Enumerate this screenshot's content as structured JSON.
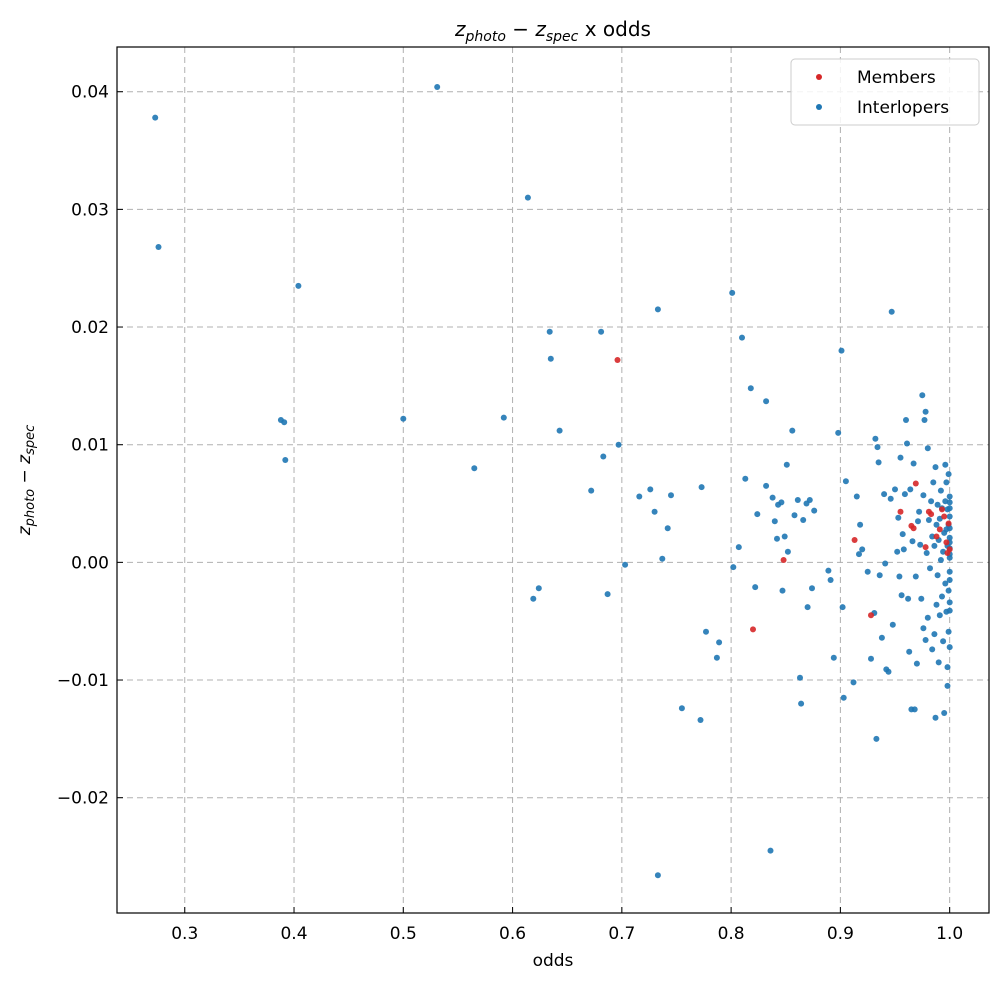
{
  "chart_data": {
    "type": "scatter",
    "title_main_1": "z",
    "title_sub_1": "photo",
    "title_minus": " − ",
    "title_main_2": "z",
    "title_sub_2": "spec",
    "title_suffix": " x odds",
    "xlabel": "odds",
    "ylabel_main_1": "z",
    "ylabel_sub_1": "photo",
    "ylabel_minus": " − ",
    "ylabel_main_2": "z",
    "ylabel_sub_2": "spec",
    "xlim": [
      0.238,
      1.036
    ],
    "ylim": [
      -0.0298,
      0.0438
    ],
    "x_ticks": [
      0.3,
      0.4,
      0.5,
      0.6,
      0.7,
      0.8,
      0.9,
      1.0
    ],
    "x_tick_labels": [
      "0.3",
      "0.4",
      "0.5",
      "0.6",
      "0.7",
      "0.8",
      "0.9",
      "1.0"
    ],
    "y_ticks": [
      -0.02,
      -0.01,
      0.0,
      0.01,
      0.02,
      0.03,
      0.04
    ],
    "y_tick_labels": [
      "−0.02",
      "−0.01",
      "0.00",
      "0.01",
      "0.02",
      "0.03",
      "0.04"
    ],
    "grid": true,
    "legend_position": "top-right",
    "series": [
      {
        "name": "Members",
        "color": "#d62728",
        "points": [
          [
            0.696,
            0.0172
          ],
          [
            0.82,
            -0.0057
          ],
          [
            0.848,
            0.0002
          ],
          [
            0.913,
            0.0019
          ],
          [
            0.928,
            -0.0045
          ],
          [
            0.955,
            0.0043
          ],
          [
            0.965,
            0.0031
          ],
          [
            0.967,
            0.0029
          ],
          [
            0.969,
            0.0067
          ],
          [
            0.978,
            0.0013
          ],
          [
            0.981,
            0.0043
          ],
          [
            0.983,
            0.0041
          ],
          [
            0.988,
            0.0022
          ],
          [
            0.991,
            0.0028
          ],
          [
            0.993,
            0.0045
          ],
          [
            0.995,
            0.0039
          ],
          [
            0.997,
            0.0017
          ],
          [
            0.998,
            0.0008
          ],
          [
            0.999,
            0.0033
          ],
          [
            1.0,
            0.0011
          ]
        ]
      },
      {
        "name": "Interlopers",
        "color": "#1f77b4",
        "points": [
          [
            0.273,
            0.0378
          ],
          [
            0.276,
            0.0268
          ],
          [
            0.388,
            0.0121
          ],
          [
            0.391,
            0.0119
          ],
          [
            0.392,
            0.0087
          ],
          [
            0.404,
            0.0235
          ],
          [
            0.5,
            0.0122
          ],
          [
            0.531,
            0.0404
          ],
          [
            0.565,
            0.008
          ],
          [
            0.592,
            0.0123
          ],
          [
            0.614,
            0.031
          ],
          [
            0.619,
            -0.0031
          ],
          [
            0.624,
            -0.0022
          ],
          [
            0.634,
            0.0196
          ],
          [
            0.635,
            0.0173
          ],
          [
            0.643,
            0.0112
          ],
          [
            0.672,
            0.0061
          ],
          [
            0.681,
            0.0196
          ],
          [
            0.683,
            0.009
          ],
          [
            0.687,
            -0.0027
          ],
          [
            0.697,
            0.01
          ],
          [
            0.703,
            -0.0002
          ],
          [
            0.716,
            0.0056
          ],
          [
            0.726,
            0.0062
          ],
          [
            0.73,
            0.0043
          ],
          [
            0.733,
            0.0215
          ],
          [
            0.733,
            -0.0266
          ],
          [
            0.737,
            0.0003
          ],
          [
            0.742,
            0.0029
          ],
          [
            0.745,
            0.0057
          ],
          [
            0.755,
            -0.0124
          ],
          [
            0.772,
            -0.0134
          ],
          [
            0.773,
            0.0064
          ],
          [
            0.777,
            -0.0059
          ],
          [
            0.787,
            -0.0081
          ],
          [
            0.789,
            -0.0068
          ],
          [
            0.801,
            0.0229
          ],
          [
            0.802,
            -0.0004
          ],
          [
            0.807,
            0.0013
          ],
          [
            0.81,
            0.0191
          ],
          [
            0.813,
            0.0071
          ],
          [
            0.818,
            0.0148
          ],
          [
            0.822,
            -0.0021
          ],
          [
            0.824,
            0.0041
          ],
          [
            0.832,
            0.0137
          ],
          [
            0.832,
            0.0065
          ],
          [
            0.836,
            -0.0245
          ],
          [
            0.838,
            0.0055
          ],
          [
            0.84,
            0.0035
          ],
          [
            0.842,
            0.002
          ],
          [
            0.843,
            0.0049
          ],
          [
            0.846,
            0.0051
          ],
          [
            0.847,
            -0.0024
          ],
          [
            0.849,
            0.0022
          ],
          [
            0.851,
            0.0083
          ],
          [
            0.852,
            0.0009
          ],
          [
            0.856,
            0.0112
          ],
          [
            0.858,
            0.004
          ],
          [
            0.861,
            0.0053
          ],
          [
            0.863,
            -0.0098
          ],
          [
            0.864,
            -0.012
          ],
          [
            0.866,
            0.0036
          ],
          [
            0.869,
            0.005
          ],
          [
            0.87,
            -0.0038
          ],
          [
            0.872,
            0.0053
          ],
          [
            0.874,
            -0.0022
          ],
          [
            0.876,
            0.0044
          ],
          [
            0.889,
            -0.0007
          ],
          [
            0.891,
            -0.0015
          ],
          [
            0.894,
            -0.0081
          ],
          [
            0.898,
            0.011
          ],
          [
            0.901,
            0.018
          ],
          [
            0.902,
            -0.0038
          ],
          [
            0.903,
            -0.0115
          ],
          [
            0.905,
            0.0069
          ],
          [
            0.912,
            -0.0102
          ],
          [
            0.915,
            0.0056
          ],
          [
            0.917,
            0.0007
          ],
          [
            0.918,
            0.0032
          ],
          [
            0.92,
            0.0011
          ],
          [
            0.925,
            -0.0008
          ],
          [
            0.928,
            -0.0082
          ],
          [
            0.931,
            -0.0043
          ],
          [
            0.932,
            0.0105
          ],
          [
            0.933,
            -0.015
          ],
          [
            0.934,
            0.0098
          ],
          [
            0.935,
            0.0085
          ],
          [
            0.936,
            -0.0011
          ],
          [
            0.938,
            -0.0064
          ],
          [
            0.94,
            0.0058
          ],
          [
            0.941,
            -0.0001
          ],
          [
            0.942,
            -0.0091
          ],
          [
            0.944,
            -0.0093
          ],
          [
            0.946,
            0.0054
          ],
          [
            0.947,
            0.0213
          ],
          [
            0.948,
            -0.0053
          ],
          [
            0.95,
            0.0062
          ],
          [
            0.952,
            0.0009
          ],
          [
            0.953,
            0.0038
          ],
          [
            0.954,
            -0.0012
          ],
          [
            0.955,
            0.0089
          ],
          [
            0.956,
            -0.0028
          ],
          [
            0.957,
            0.0024
          ],
          [
            0.958,
            0.0011
          ],
          [
            0.959,
            0.0058
          ],
          [
            0.96,
            0.0121
          ],
          [
            0.961,
            0.0101
          ],
          [
            0.962,
            -0.0031
          ],
          [
            0.963,
            -0.0076
          ],
          [
            0.964,
            0.0062
          ],
          [
            0.965,
            -0.0125
          ],
          [
            0.966,
            0.0018
          ],
          [
            0.967,
            0.0084
          ],
          [
            0.968,
            -0.0125
          ],
          [
            0.969,
            -0.0012
          ],
          [
            0.97,
            -0.0086
          ],
          [
            0.971,
            0.0035
          ],
          [
            0.972,
            0.0043
          ],
          [
            0.973,
            0.0015
          ],
          [
            0.974,
            -0.0031
          ],
          [
            0.975,
            0.0142
          ],
          [
            0.976,
            0.0057
          ],
          [
            0.976,
            -0.0056
          ],
          [
            0.977,
            0.0121
          ],
          [
            0.978,
            0.0128
          ],
          [
            0.978,
            -0.0066
          ],
          [
            0.979,
            0.0008
          ],
          [
            0.98,
            0.0097
          ],
          [
            0.98,
            -0.0047
          ],
          [
            0.981,
            0.0036
          ],
          [
            0.982,
            -0.0005
          ],
          [
            0.983,
            0.0052
          ],
          [
            0.984,
            -0.0074
          ],
          [
            0.984,
            0.0022
          ],
          [
            0.985,
            0.0068
          ],
          [
            0.986,
            -0.0061
          ],
          [
            0.986,
            0.0014
          ],
          [
            0.987,
            -0.0132
          ],
          [
            0.987,
            0.0081
          ],
          [
            0.988,
            0.0032
          ],
          [
            0.988,
            -0.0036
          ],
          [
            0.989,
            0.0049
          ],
          [
            0.989,
            -0.0011
          ],
          [
            0.99,
            0.0019
          ],
          [
            0.99,
            -0.0085
          ],
          [
            0.991,
            0.0037
          ],
          [
            0.991,
            -0.0045
          ],
          [
            0.992,
            0.0002
          ],
          [
            0.992,
            0.0061
          ],
          [
            0.993,
            -0.0029
          ],
          [
            0.993,
            0.0046
          ],
          [
            0.994,
            -0.0067
          ],
          [
            0.994,
            0.0009
          ],
          [
            0.995,
            0.0025
          ],
          [
            0.995,
            -0.0128
          ],
          [
            0.996,
            0.0052
          ],
          [
            0.996,
            -0.0018
          ],
          [
            0.996,
            0.0083
          ],
          [
            0.997,
            -0.0042
          ],
          [
            0.997,
            0.0028
          ],
          [
            0.997,
            0.0068
          ],
          [
            0.998,
            -0.0105
          ],
          [
            0.998,
            0.0014
          ],
          [
            0.998,
            -0.0089
          ],
          [
            0.998,
            0.0045
          ],
          [
            0.999,
            0.0075
          ],
          [
            0.999,
            -0.0059
          ],
          [
            0.999,
            0.0032
          ],
          [
            0.999,
            -0.0024
          ],
          [
            1.0,
            0.0056
          ],
          [
            1.0,
            -0.0072
          ],
          [
            1.0,
            0.0004
          ],
          [
            1.0,
            0.0039
          ],
          [
            1.0,
            -0.0034
          ],
          [
            1.0,
            0.0051
          ],
          [
            1.0,
            0.0021
          ],
          [
            1.0,
            -0.0008
          ],
          [
            1.0,
            0.0012
          ],
          [
            1.0,
            0.0029
          ],
          [
            1.0,
            -0.0015
          ],
          [
            1.0,
            0.0046
          ],
          [
            1.0,
            0.0007
          ],
          [
            1.0,
            0.0017
          ],
          [
            1.0,
            -0.0041
          ]
        ]
      }
    ]
  }
}
